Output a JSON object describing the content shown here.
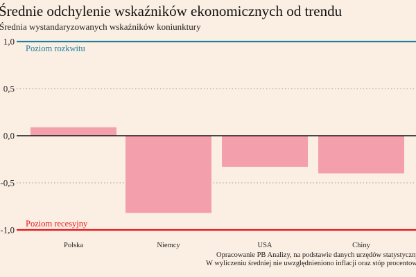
{
  "chart_data": {
    "type": "bar",
    "title": "Średnie odchylenie wskaźników ekonomicznych od trendu",
    "subtitle": "Średnia wystandaryzowanych wskaźników koniunktury",
    "categories": [
      "Polska",
      "Niemcy",
      "USA",
      "Chiny"
    ],
    "values": [
      0.09,
      -0.82,
      -0.33,
      -0.4
    ],
    "ylim": [
      -1.0,
      1.0
    ],
    "yticks": [
      1.0,
      0.5,
      0.0,
      -0.5,
      -1.0
    ],
    "ytick_labels": [
      "1,0",
      "0,5",
      "0,0",
      "-0,5",
      "-1,0"
    ],
    "reference_lines": [
      {
        "value": 1.0,
        "label": "Poziom rozkwitu",
        "color": "#1a7fa0"
      },
      {
        "value": -1.0,
        "label": "Poziom recesyjny",
        "color": "#e8141c"
      }
    ],
    "bar_color": "#f49fac",
    "grid": "dotted at ±0.5",
    "footnotes": [
      "Opracowanie PB Analizy, na podstawie danych urzędów statystycznych.",
      "W wyliczeniu średniej nie uwzględnieniono inflacji oraz stóp procentowych."
    ]
  }
}
